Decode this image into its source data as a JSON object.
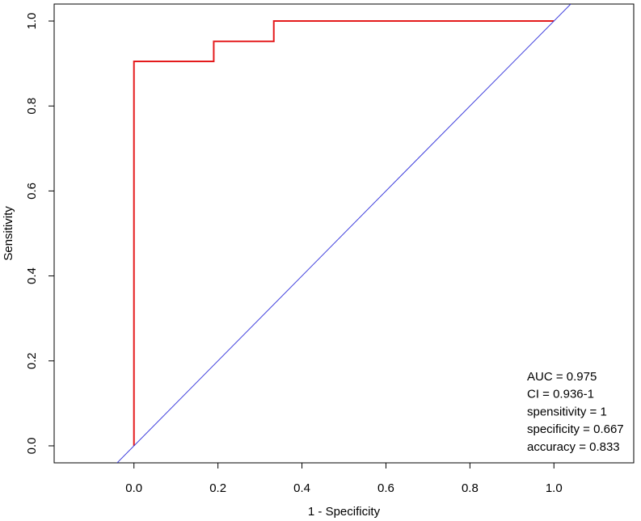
{
  "chart_data": {
    "type": "line",
    "xlabel": "1 - Specificity",
    "ylabel": "Sensitivity",
    "xlim": [
      -0.19,
      1.19
    ],
    "ylim": [
      -0.04,
      1.04
    ],
    "x_ticks": [
      "0.0",
      "0.2",
      "0.4",
      "0.6",
      "0.8",
      "1.0"
    ],
    "y_ticks": [
      "0.0",
      "0.2",
      "0.4",
      "0.6",
      "0.8",
      "1.0"
    ],
    "grid": false,
    "series": [
      {
        "color": "#e41a1c",
        "x": [
          0.0,
          0.0,
          0.19,
          0.19,
          0.333,
          0.333,
          1.0
        ],
        "y": [
          0.0,
          0.905,
          0.905,
          0.952,
          0.952,
          1.0,
          1.0
        ]
      },
      {
        "color": "#3f3fdd",
        "x": [
          -0.04,
          1.04
        ],
        "y": [
          -0.04,
          1.04
        ]
      }
    ],
    "annotations": [
      "AUC = 0.975",
      "CI = 0.936-1",
      "spensitivity = 1",
      "specificity = 0.667",
      "accuracy = 0.833"
    ]
  }
}
